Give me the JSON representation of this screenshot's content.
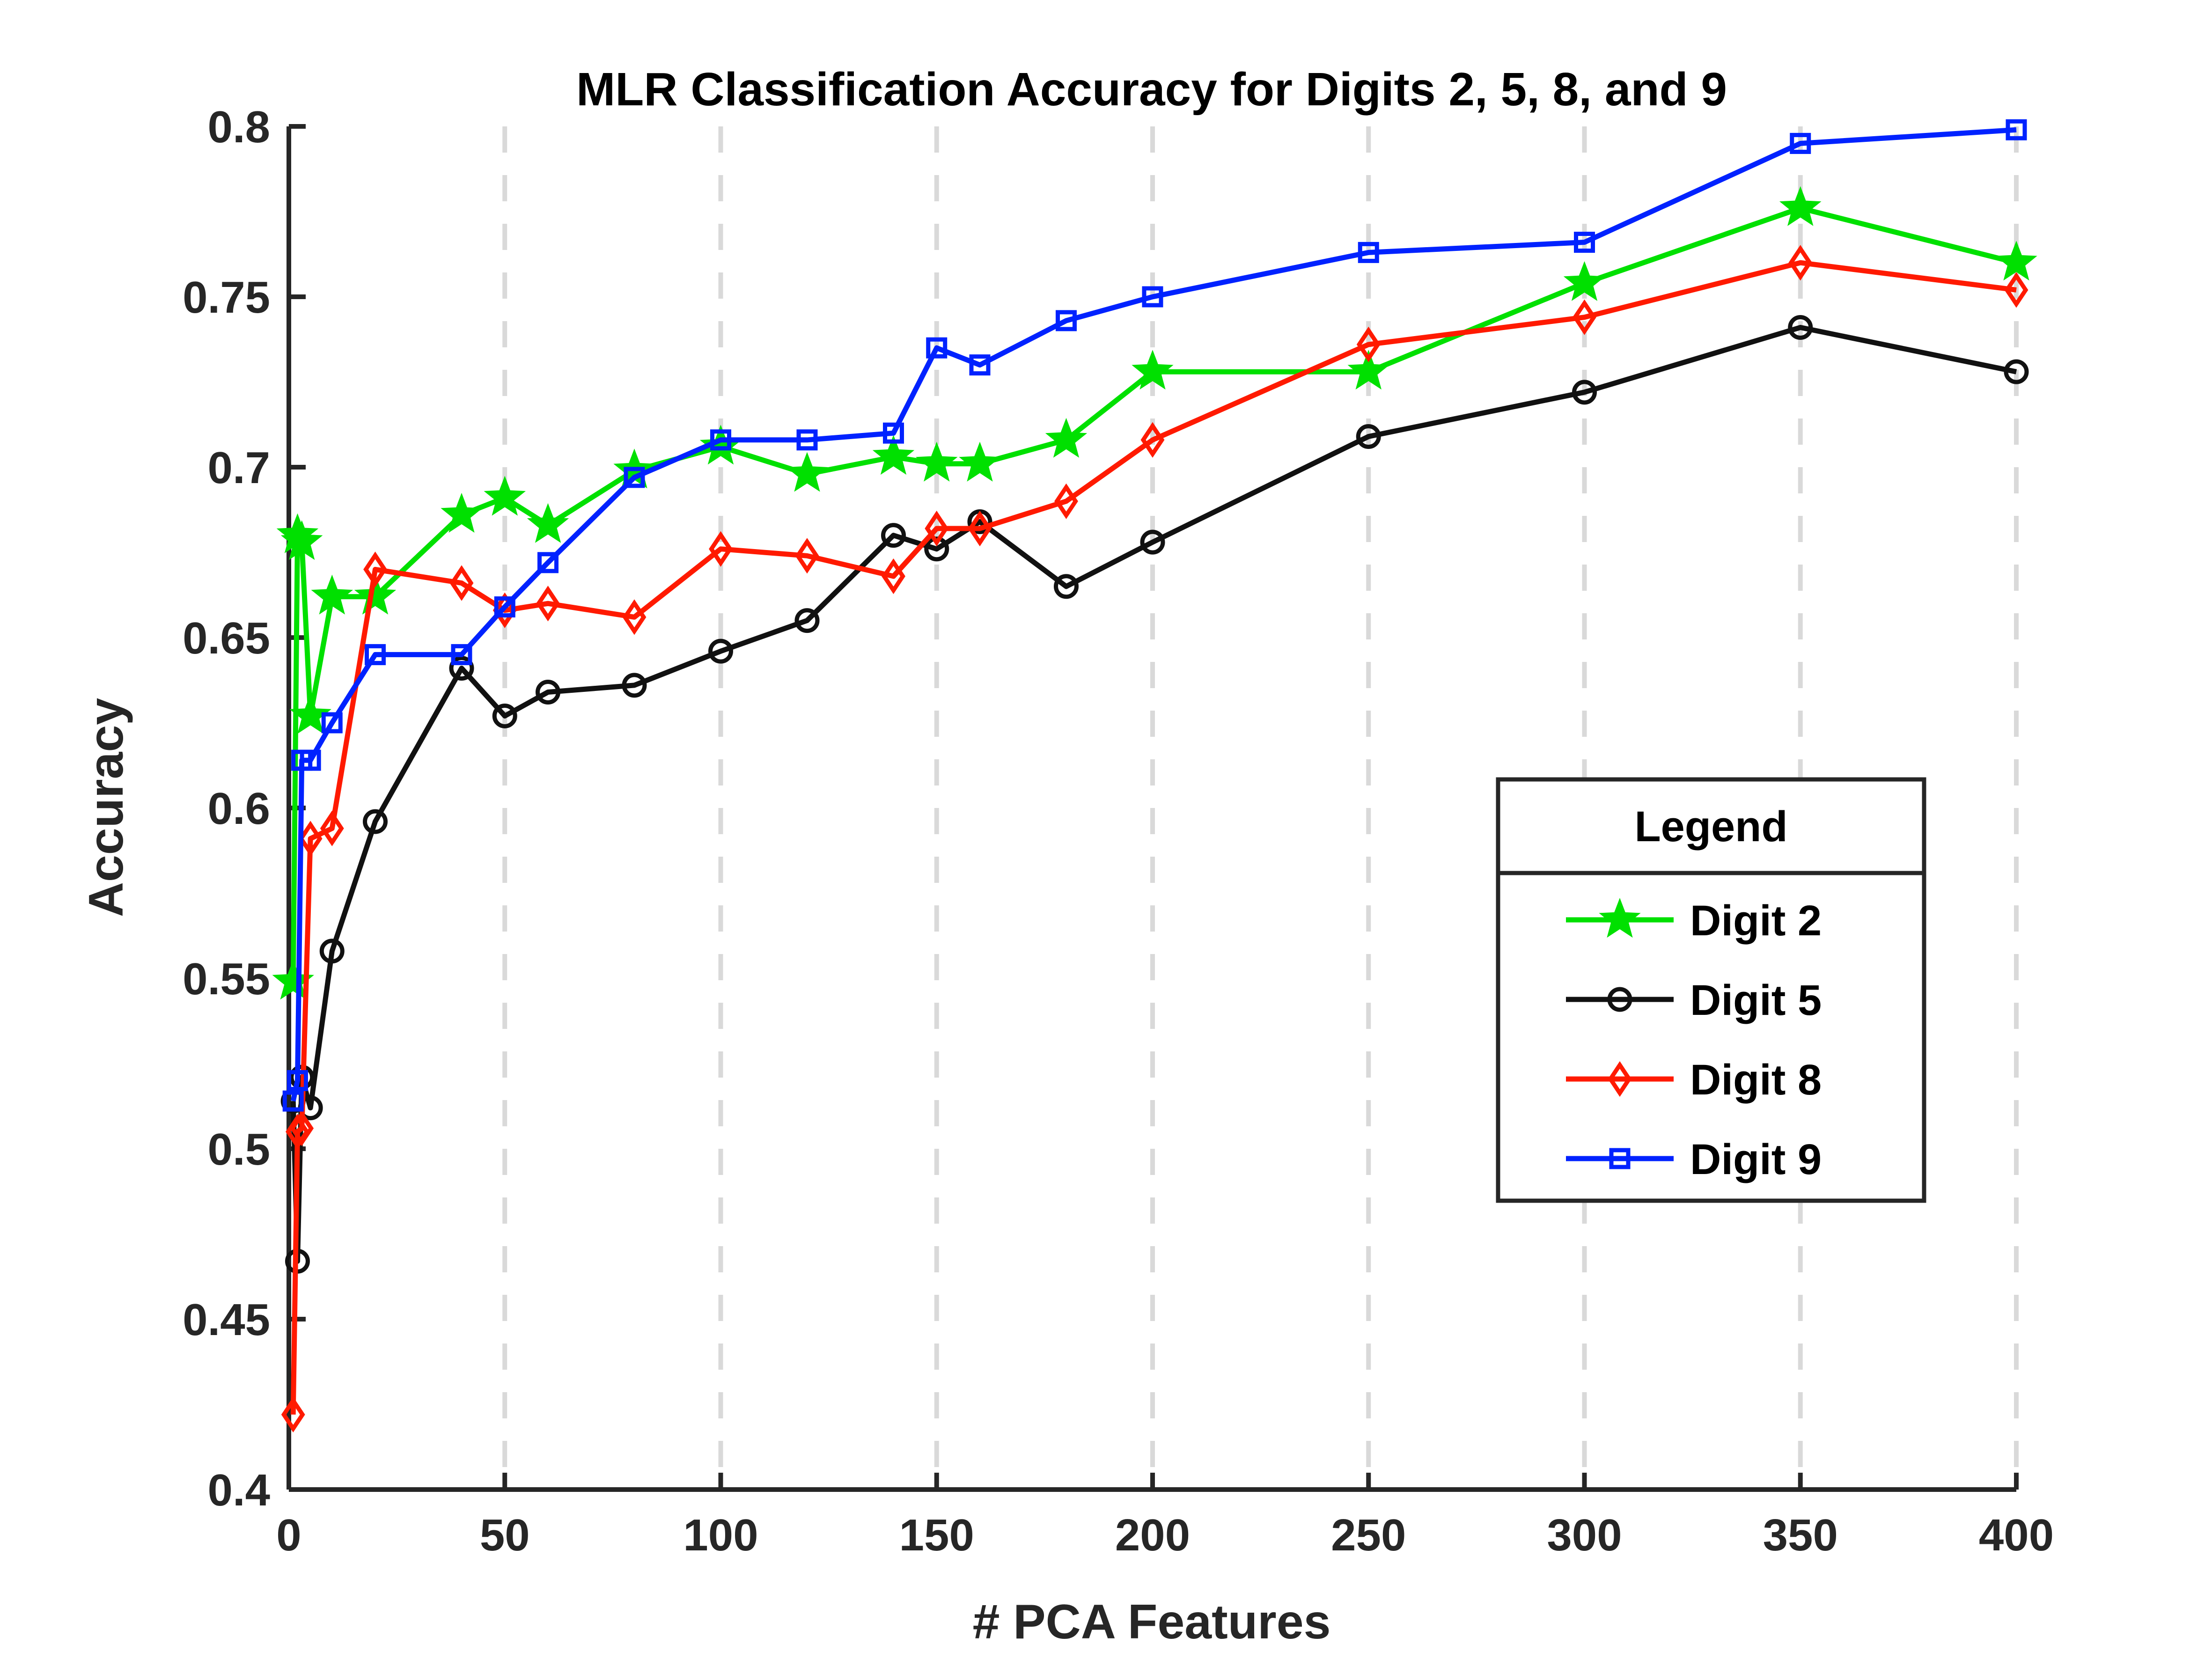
{
  "chart_data": {
    "type": "line",
    "title": "MLR Classification Accuracy for Digits 2, 5, 8, and 9",
    "xlabel": "# PCA Features",
    "ylabel": "Accuracy",
    "xlim": [
      0,
      400
    ],
    "ylim": [
      0.4,
      0.8
    ],
    "xticks": [
      0,
      50,
      100,
      150,
      200,
      250,
      300,
      350,
      400
    ],
    "xtick_labels": [
      "0",
      "50",
      "100",
      "150",
      "200",
      "250",
      "300",
      "350",
      "400"
    ],
    "yticks": [
      0.4,
      0.45,
      0.5,
      0.55,
      0.6,
      0.65,
      0.7,
      0.75,
      0.8
    ],
    "ytick_labels": [
      "0.4",
      "0.45",
      "0.5",
      "0.55",
      "0.6",
      "0.65",
      "0.7",
      "0.75",
      "0.8"
    ],
    "grid": "vertical dashed at x ticks",
    "legend": {
      "title": "Legend",
      "placement": "right-middle"
    },
    "x": [
      1,
      2,
      3,
      5,
      10,
      20,
      40,
      50,
      60,
      80,
      100,
      120,
      140,
      150,
      160,
      180,
      200,
      250,
      300,
      350,
      400
    ],
    "series": [
      {
        "name": "Digit 2",
        "color": "#00e000",
        "marker": "star",
        "values": [
          0.549,
          0.68,
          0.678,
          0.627,
          0.662,
          0.662,
          0.686,
          0.691,
          0.683,
          0.699,
          0.706,
          0.698,
          0.703,
          0.701,
          0.701,
          0.708,
          0.728,
          0.728,
          0.754,
          0.776,
          0.76
        ]
      },
      {
        "name": "Digit 5",
        "color": "#111111",
        "marker": "circle",
        "values": [
          0.514,
          0.467,
          0.521,
          0.512,
          0.558,
          0.596,
          0.641,
          0.627,
          0.634,
          0.636,
          0.646,
          0.655,
          0.68,
          0.676,
          0.684,
          0.665,
          0.678,
          0.709,
          0.722,
          0.741,
          0.728
        ]
      },
      {
        "name": "Digit 8",
        "color": "#ff1a00",
        "marker": "diamond",
        "values": [
          0.422,
          0.505,
          0.506,
          0.591,
          0.594,
          0.67,
          0.666,
          0.658,
          0.66,
          0.656,
          0.676,
          0.674,
          0.668,
          0.682,
          0.682,
          0.69,
          0.708,
          0.736,
          0.744,
          0.76,
          0.752
        ]
      },
      {
        "name": "Digit 9",
        "color": "#0022ff",
        "marker": "square",
        "values": [
          0.514,
          0.52,
          0.614,
          0.614,
          0.625,
          0.645,
          0.645,
          0.659,
          0.672,
          0.697,
          0.708,
          0.708,
          0.71,
          0.735,
          0.73,
          0.743,
          0.75,
          0.763,
          0.766,
          0.795,
          0.799
        ]
      }
    ]
  }
}
